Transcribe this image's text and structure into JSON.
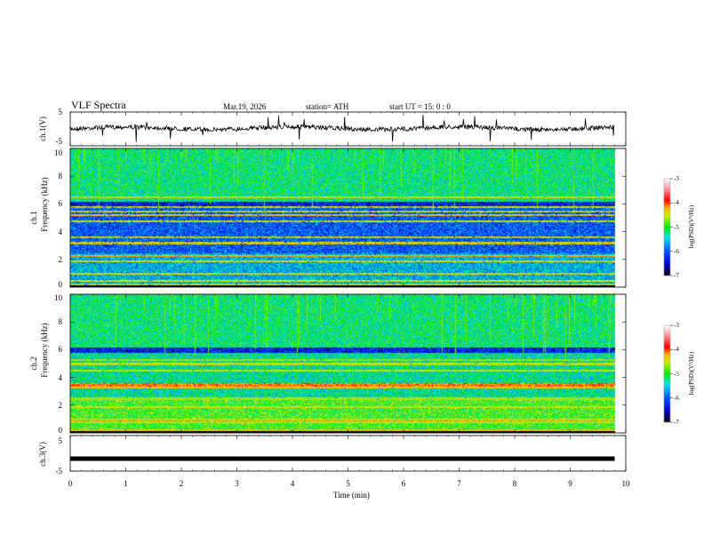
{
  "header": {
    "title": "VLF  Spectra",
    "date": "Mar.19, 2026",
    "station": "station= ATH",
    "start": "start  UT  =   15: 0  : 0"
  },
  "chart_data": {
    "type": "heatmap",
    "xlabel": "Time  (min)",
    "xlim": [
      0,
      10
    ],
    "xticks": [
      "0",
      "1",
      "2",
      "3",
      "4",
      "5",
      "6",
      "7",
      "8",
      "9",
      "10"
    ],
    "data_end_min": 9.8,
    "panels": [
      {
        "name": "ch1-waveform",
        "ylabel": "ch.1(V)",
        "ylim": [
          -5,
          5
        ],
        "yticks": [
          "5",
          "-5"
        ],
        "type": "line",
        "mean_level": 0.2
      },
      {
        "name": "ch1-spectrogram",
        "ylabel": "ch.1\nFrequency  (kHz)",
        "ylabel_top": "ch.1",
        "ylabel_main": "Frequency  (kHz)",
        "ylim": [
          0,
          10
        ],
        "yticks": [
          "0",
          "2",
          "4",
          "6",
          "8",
          "10"
        ],
        "type": "heatmap",
        "colorbar": {
          "label": "log(PSD)(V²/Hz)",
          "range": [
            -7,
            -3
          ],
          "ticks": [
            "-3",
            "-4",
            "-5",
            "-6",
            "-7"
          ]
        },
        "bands_khz": [
          0.2,
          0.5,
          1.0,
          1.9,
          2.3,
          3.2,
          3.6,
          4.8,
          5.2,
          5.5,
          5.8,
          6.5
        ],
        "background_psd": -6.0,
        "upper_psd": -5.2
      },
      {
        "name": "ch2-spectrogram",
        "ylabel_top": "ch.2",
        "ylabel_main": "Frequency  (kHz)",
        "ylim": [
          0,
          10
        ],
        "yticks": [
          "0",
          "2",
          "4",
          "6",
          "8",
          "10"
        ],
        "type": "heatmap",
        "colorbar": {
          "label": "log(PSD)(V²/Hz)",
          "range": [
            -7,
            -3
          ],
          "ticks": [
            "-3",
            "-4",
            "-5",
            "-6",
            "-7"
          ]
        },
        "bands_khz": [
          0.2,
          0.8,
          1.0,
          1.9,
          2.5,
          3.5,
          3.3,
          4.5,
          5.0,
          5.3
        ],
        "background_psd": -5.3,
        "upper_psd": -5.2
      },
      {
        "name": "ch3-waveform",
        "ylabel": "ch.3(V)",
        "ylim": [
          -5,
          5
        ],
        "yticks": [
          "5",
          "-5"
        ],
        "type": "line",
        "mean_level": -1.5
      }
    ]
  }
}
